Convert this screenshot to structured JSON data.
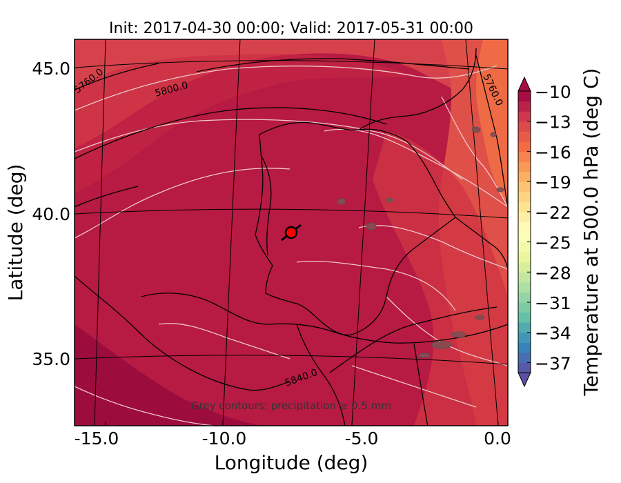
{
  "title": "Init: 2017-04-30 00:00; Valid: 2017-05-31 00:00",
  "axes": {
    "xlabel": "Longitude (deg)",
    "ylabel": "Latitude (deg)",
    "xticks": [
      "-15.0",
      "-10.0",
      "-5.0",
      "0.0"
    ],
    "yticks": [
      "45.0",
      "40.0",
      "35.0"
    ]
  },
  "colorbar": {
    "label": "Temperature at 500.0 hPa (deg C)",
    "ticks": [
      "−10",
      "−13",
      "−16",
      "−19",
      "−22",
      "−25",
      "−28",
      "−31",
      "−34",
      "−37"
    ],
    "range": [
      -38,
      -10
    ]
  },
  "contour_labels": [
    "5760.0",
    "5800.0",
    "5840.0",
    "5760.0"
  ],
  "note": "Grey contours: precipitation ≥ 0.5 mm",
  "colors": {
    "warm_dark": "#a8123f",
    "warm_mid": "#c4203f",
    "warm_light": "#d8434a",
    "orange": "#ef6b45",
    "marker": "#ff0000"
  }
}
